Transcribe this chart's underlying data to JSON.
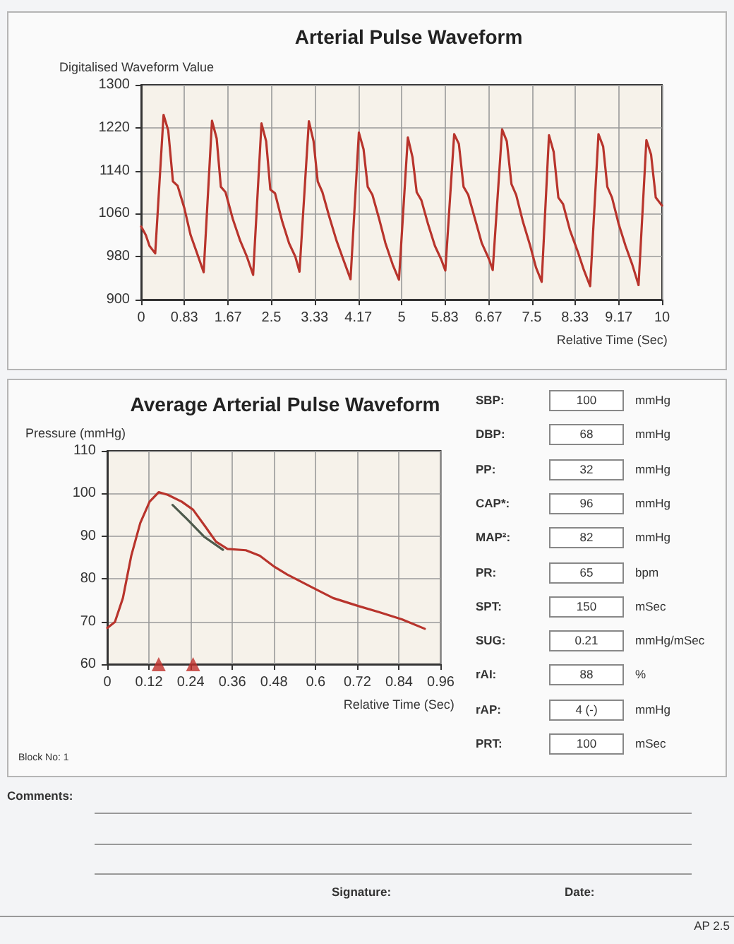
{
  "chart_data": [
    {
      "type": "line",
      "title": "Arterial Pulse Waveform",
      "xlabel": "Relative Time (Sec)",
      "ylabel": "Digitalised Waveform Value",
      "color": "#b8342c",
      "x": [
        0,
        0.09,
        0.16,
        0.27,
        0.43,
        0.52,
        0.61,
        0.7,
        0.83,
        0.95,
        1.06,
        1.2,
        1.36,
        1.45,
        1.53,
        1.62,
        1.76,
        1.9,
        2.03,
        2.15,
        2.31,
        2.4,
        2.48,
        2.57,
        2.71,
        2.84,
        2.96,
        3.04,
        3.22,
        3.31,
        3.39,
        3.48,
        3.61,
        3.75,
        3.88,
        4.02,
        4.18,
        4.27,
        4.35,
        4.44,
        4.57,
        4.69,
        4.83,
        4.95,
        5.12,
        5.21,
        5.29,
        5.38,
        5.51,
        5.64,
        5.76,
        5.84,
        6.01,
        6.1,
        6.19,
        6.28,
        6.41,
        6.54,
        6.68,
        6.75,
        6.93,
        7.02,
        7.11,
        7.2,
        7.33,
        7.47,
        7.58,
        7.69,
        7.83,
        7.92,
        8.01,
        8.1,
        8.23,
        8.38,
        8.5,
        8.62,
        8.78,
        8.87,
        8.95,
        9.04,
        9.17,
        9.3,
        9.43,
        9.55,
        9.7,
        9.79,
        9.88,
        10
      ],
      "values": [
        1036,
        1020,
        1000,
        986,
        1244,
        1215,
        1120,
        1112,
        1070,
        1020,
        990,
        951,
        1233,
        1200,
        1110,
        1100,
        1050,
        1010,
        980,
        946,
        1228,
        1195,
        1105,
        1098,
        1045,
        1005,
        980,
        952,
        1232,
        1195,
        1120,
        1100,
        1055,
        1010,
        975,
        938,
        1211,
        1180,
        1110,
        1095,
        1050,
        1005,
        965,
        937,
        1202,
        1165,
        1100,
        1085,
        1040,
        1000,
        975,
        954,
        1208,
        1190,
        1110,
        1095,
        1050,
        1005,
        975,
        955,
        1217,
        1195,
        1115,
        1095,
        1045,
        1000,
        960,
        933,
        1206,
        1175,
        1090,
        1078,
        1030,
        990,
        955,
        925,
        1208,
        1185,
        1110,
        1090,
        1040,
        1000,
        965,
        927,
        1197,
        1170,
        1090,
        1075
      ],
      "xlim": [
        0,
        10
      ],
      "xticks": [
        0,
        0.83,
        1.67,
        2.5,
        3.33,
        4.17,
        5,
        5.83,
        6.67,
        7.5,
        8.33,
        9.17,
        10
      ],
      "ylim": [
        900,
        1300
      ],
      "yticks": [
        900,
        980,
        1060,
        1140,
        1220,
        1300
      ],
      "grid": true
    },
    {
      "type": "line",
      "title": "Average Arterial Pulse Waveform",
      "xlabel": "Relative Time (Sec)",
      "ylabel": "Pressure (mmHg)",
      "annotations": [
        "Block No: 1"
      ],
      "series": [
        {
          "type": "line",
          "color": "#b8342c",
          "x": [
            0,
            0.022,
            0.045,
            0.069,
            0.095,
            0.122,
            0.148,
            0.174,
            0.214,
            0.247,
            0.28,
            0.313,
            0.346,
            0.399,
            0.439,
            0.478,
            0.518,
            0.597,
            0.65,
            0.716,
            0.782,
            0.848,
            0.914
          ],
          "values": [
            68.5,
            69.9,
            75.5,
            85.4,
            93.1,
            98.1,
            100.3,
            99.7,
            98.1,
            96.2,
            92.5,
            88.7,
            87.0,
            86.7,
            85.4,
            83.0,
            81.0,
            77.7,
            75.5,
            73.8,
            72.2,
            70.5,
            68.3
          ]
        },
        {
          "type": "line",
          "color": "#4d5a4c",
          "x": [
            0.188,
            0.227,
            0.28,
            0.333
          ],
          "values": [
            97.3,
            94.2,
            89.8,
            86.8
          ]
        },
        {
          "type": "scatter",
          "marker": "triangle",
          "color": "#c0302a",
          "x": [
            0.148,
            0.247
          ],
          "values": [
            60,
            60
          ]
        }
      ],
      "xlim": [
        0,
        0.96
      ],
      "xticks": [
        0,
        0.12,
        0.24,
        0.36,
        0.48,
        0.6,
        0.72,
        0.84,
        0.96
      ],
      "ylim": [
        60,
        110
      ],
      "yticks": [
        60,
        70,
        80,
        90,
        100,
        110
      ],
      "grid": true
    },
    {
      "type": "other",
      "annotations": [
        "SBP:",
        "100",
        "mmHg",
        "DBP:",
        "68",
        "mmHg",
        "PP:",
        "32",
        "mmHg",
        "CAP*:",
        "96",
        "mmHg",
        "MAP²:",
        "82",
        "mmHg",
        "PR:",
        "65",
        "bpm",
        "SPT:",
        "150",
        "mSec",
        "SUG:",
        "0.21",
        "mmHg/mSec",
        "rAI:",
        "88",
        "%",
        "rAP:",
        "4 (-)",
        "mmHg",
        "PRT:",
        "100",
        "mSec"
      ]
    },
    {
      "type": "other",
      "annotations": [
        "Comments:",
        "Signature:",
        "Date:",
        "AP 2.5"
      ]
    }
  ]
}
